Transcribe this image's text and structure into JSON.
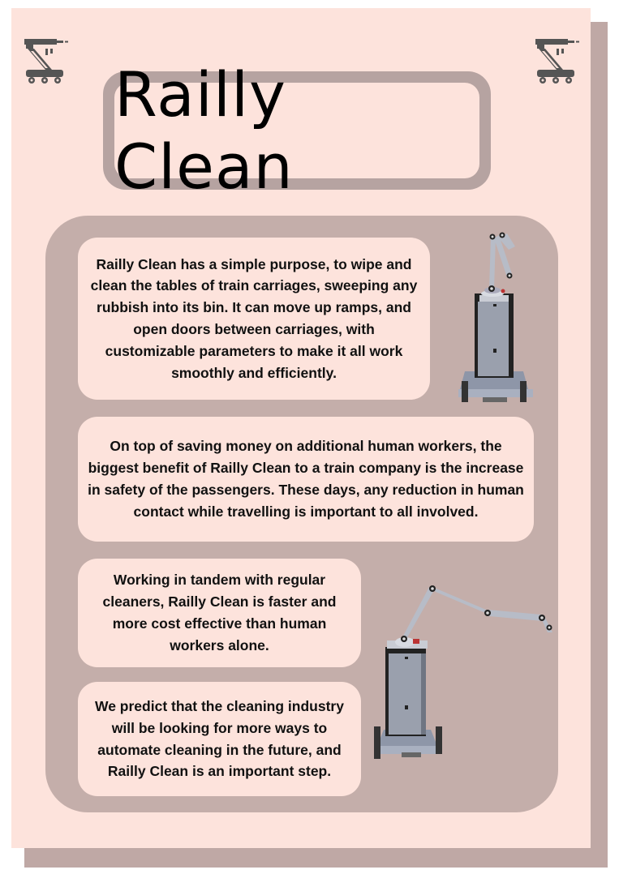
{
  "title": "Railly Clean",
  "paragraphs": {
    "p1": "Railly Clean has a simple purpose, to wipe and clean the tables of train carriages, sweeping any rubbish into its bin. It can move up ramps, and open doors between carriages, with customizable parameters to make it all work smoothly and efficiently.",
    "p2": "On top of saving money on additional human workers, the biggest benefit of Railly Clean to a train company is the increase in safety of the passengers. These days, any reduction in human contact while travelling is important to all involved.",
    "p3": "Working in tandem with regular cleaners, Railly Clean is faster and more cost effective than human workers alone.",
    "p4": "We predict that the cleaning industry will be  looking for more ways to automate cleaning in the future, and Railly Clean is an important step."
  },
  "icons": {
    "corner": "robot-arm-cart-icon",
    "robot_upright": "cleaning-robot-arm-raised",
    "robot_extended": "cleaning-robot-arm-extended"
  },
  "colors": {
    "page_bg": "#fde3dc",
    "panel": "#c4aeaa",
    "frame": "#b6a3a1",
    "shadow": "#bfa8a5"
  }
}
